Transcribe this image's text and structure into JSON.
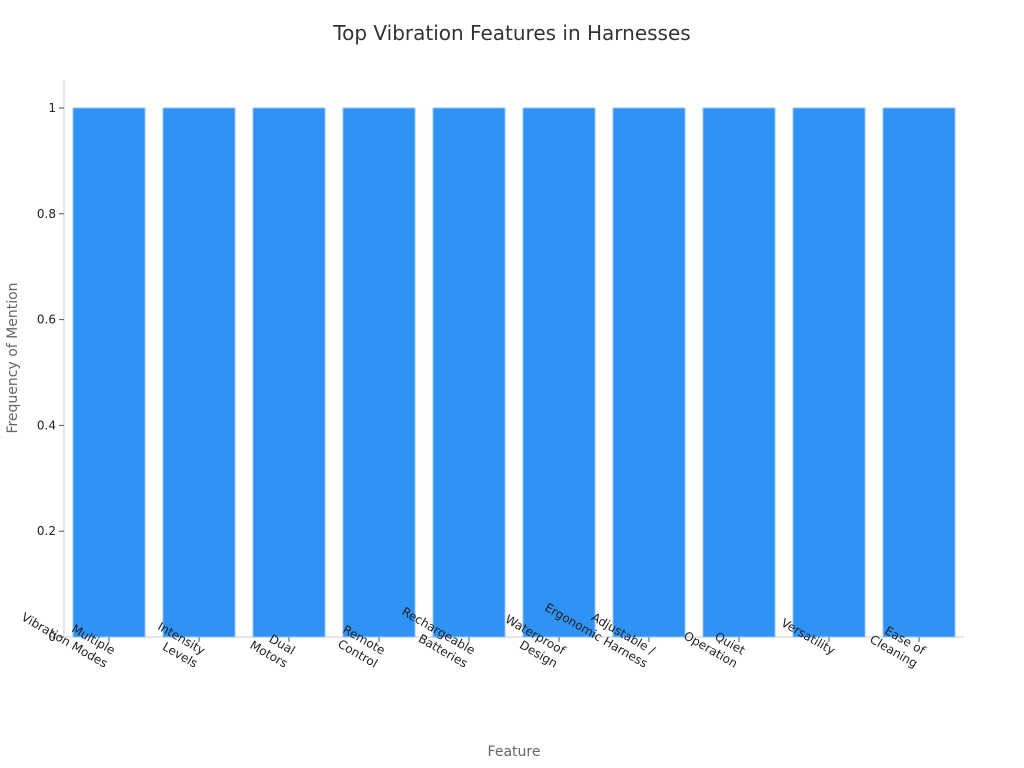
{
  "chart_data": {
    "type": "bar",
    "title": "Top Vibration Features in Harnesses",
    "xlabel": "Feature",
    "ylabel": "Frequency of Mention",
    "categories": [
      [
        "Multiple",
        "Vibration Modes"
      ],
      [
        "Intensity",
        "Levels"
      ],
      [
        "Dual",
        "Motors"
      ],
      [
        "Remote",
        "Control"
      ],
      [
        "Rechargeable",
        "Batteries"
      ],
      [
        "Waterproof",
        "Design"
      ],
      [
        "Adjustable /",
        "Ergonomic Harness"
      ],
      [
        "Quiet",
        "Operation"
      ],
      [
        "Versatility"
      ],
      [
        "Ease of",
        "Cleaning"
      ]
    ],
    "values": [
      1,
      1,
      1,
      1,
      1,
      1,
      1,
      1,
      1,
      1
    ],
    "ylim": [
      0,
      1.05
    ],
    "yticks": [
      "0",
      "0.2",
      "0.4",
      "0.6",
      "0.8",
      "1"
    ],
    "ytick_values": [
      0,
      0.2,
      0.4,
      0.6,
      0.8,
      1
    ],
    "grid": false,
    "bar_color": "#2e93f5"
  }
}
